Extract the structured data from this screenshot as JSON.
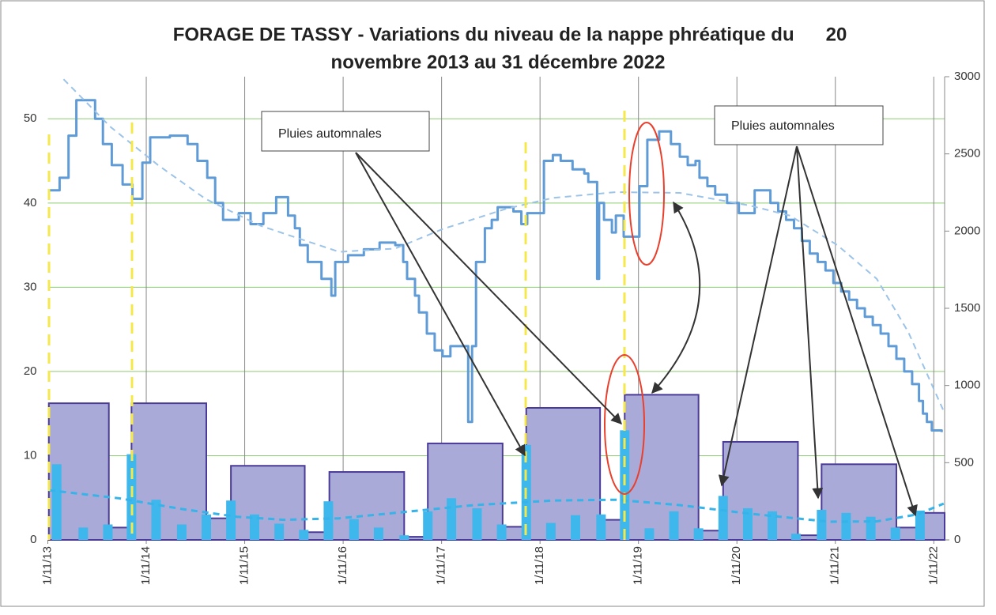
{
  "chart_data": {
    "type": "combo",
    "title": [
      "FORAGE DE TASSY - Variations du niveau de la nappe phréatique du      20",
      "novembre 2013 au 31 décembre 2022"
    ],
    "xlim": [
      2013.83,
      2022.94
    ],
    "xticks": [
      {
        "value": 2013.83,
        "label": "1/11/13"
      },
      {
        "value": 2014.83,
        "label": "1/11/14"
      },
      {
        "value": 2015.83,
        "label": "1/11/15"
      },
      {
        "value": 2016.83,
        "label": "1/11/16"
      },
      {
        "value": 2017.83,
        "label": "1/11/17"
      },
      {
        "value": 2018.83,
        "label": "1/11/18"
      },
      {
        "value": 2019.83,
        "label": "1/11/19"
      },
      {
        "value": 2020.83,
        "label": "1/11/20"
      },
      {
        "value": 2021.83,
        "label": "1/11/21"
      },
      {
        "value": 2022.83,
        "label": "1/11/22"
      }
    ],
    "ylim": [
      0,
      55
    ],
    "yticks": [
      0,
      10,
      20,
      30,
      40,
      50
    ],
    "y2lim": [
      0,
      3000
    ],
    "y2ticks": [
      0,
      500,
      1000,
      1500,
      2000,
      2500,
      3000
    ],
    "grid": true,
    "annotations": [
      "Pluies automnales",
      "Pluies automnales"
    ],
    "series": [
      {
        "type": "histogram",
        "axis": "y2",
        "color": "#aaaad8",
        "edge_color": "#4a3b98",
        "bins": [
          2013.84,
          2014.45,
          2014.68,
          2015.44,
          2015.69,
          2016.44,
          2016.69,
          2017.45,
          2017.69,
          2018.45,
          2018.69,
          2019.44,
          2019.69,
          2020.44,
          2020.69,
          2021.45,
          2021.69,
          2022.45,
          2022.66,
          2022.94
        ],
        "values": [
          885,
          80,
          885,
          140,
          480,
          50,
          440,
          20,
          625,
          85,
          855,
          130,
          940,
          60,
          635,
          30,
          490,
          80,
          175
        ]
      },
      {
        "type": "bar",
        "axis": "y2",
        "color": "#3db7ec",
        "x": [
          2013.92,
          2014.19,
          2014.44,
          2014.68,
          2014.93,
          2015.19,
          2015.44,
          2015.69,
          2015.93,
          2016.18,
          2016.43,
          2016.68,
          2016.94,
          2017.19,
          2017.45,
          2017.69,
          2017.93,
          2018.19,
          2018.44,
          2018.69,
          2018.94,
          2019.19,
          2019.45,
          2019.69,
          2019.94,
          2020.19,
          2020.44,
          2020.69,
          2020.94,
          2021.19,
          2021.43,
          2021.69,
          2021.94,
          2022.19,
          2022.44,
          2022.69
        ],
        "values": [
          490,
          80,
          100,
          555,
          260,
          100,
          165,
          255,
          165,
          105,
          65,
          250,
          135,
          80,
          30,
          185,
          270,
          205,
          100,
          615,
          110,
          160,
          165,
          710,
          75,
          185,
          75,
          285,
          205,
          185,
          40,
          195,
          175,
          150,
          80,
          190
        ]
      },
      {
        "type": "line",
        "axis": "y2",
        "color": "#36b3e8",
        "dashed": true,
        "width": 3,
        "x": [
          2013.84,
          2014.55,
          2015.19,
          2015.75,
          2016.23,
          2016.79,
          2017.36,
          2018.16,
          2018.96,
          2019.6,
          2020.25,
          2020.96,
          2021.77,
          2022.25,
          2022.66,
          2022.93
        ],
        "values": [
          322,
          270,
          200,
          150,
          130,
          140,
          175,
          225,
          255,
          260,
          225,
          170,
          118,
          120,
          165,
          235
        ]
      },
      {
        "type": "step",
        "color": "#5f9bd6",
        "width": 3,
        "x": [
          2013.84,
          2013.95,
          2014.04,
          2014.12,
          2014.31,
          2014.39,
          2014.48,
          2014.59,
          2014.69,
          2014.79,
          2014.87,
          2015.07,
          2015.25,
          2015.35,
          2015.45,
          2015.53,
          2015.61,
          2015.77,
          2015.89,
          2016.02,
          2016.15,
          2016.27,
          2016.34,
          2016.39,
          2016.47,
          2016.61,
          2016.71,
          2016.75,
          2016.88,
          2017.04,
          2017.2,
          2017.36,
          2017.44,
          2017.48,
          2017.56,
          2017.6,
          2017.68,
          2017.76,
          2017.84,
          2017.92,
          2018.1,
          2018.14,
          2018.18,
          2018.27,
          2018.34,
          2018.4,
          2018.56,
          2018.64,
          2018.7,
          2018.87,
          2018.96,
          2019.04,
          2019.16,
          2019.28,
          2019.32,
          2019.41,
          2019.43,
          2019.48,
          2019.56,
          2019.6,
          2019.68,
          2019.84,
          2019.92,
          2020.04,
          2020.16,
          2020.25,
          2020.33,
          2020.41,
          2020.45,
          2020.53,
          2020.61,
          2020.73,
          2020.85,
          2021.01,
          2021.17,
          2021.25,
          2021.33,
          2021.41,
          2021.49,
          2021.57,
          2021.65,
          2021.73,
          2021.81,
          2021.89,
          2021.97,
          2022.05,
          2022.13,
          2022.21,
          2022.29,
          2022.37,
          2022.45,
          2022.53,
          2022.61,
          2022.68,
          2022.72,
          2022.76,
          2022.81,
          2022.91
        ],
        "values": [
          41.5,
          43,
          48,
          52.2,
          50,
          47,
          44.5,
          42.2,
          40.5,
          44.8,
          47.8,
          48,
          47,
          45,
          43,
          40,
          38,
          38.8,
          37.5,
          38.8,
          40.7,
          38.5,
          37,
          35,
          33,
          31,
          29,
          33,
          33.8,
          34.5,
          35.3,
          35,
          33,
          31,
          29,
          27,
          24.5,
          22.5,
          21.8,
          23,
          14,
          23,
          33,
          37,
          38,
          39.5,
          39,
          37.5,
          38.8,
          45,
          45.7,
          45,
          44,
          43.5,
          42.5,
          31,
          40,
          38,
          36.5,
          38.5,
          36,
          42,
          47.5,
          48.5,
          47,
          45.5,
          44.5,
          45,
          43,
          42,
          41,
          40,
          38.8,
          41.5,
          40,
          39,
          38,
          37,
          35.5,
          34,
          33,
          32,
          30.5,
          29.5,
          28.5,
          27.5,
          26.5,
          25.5,
          24.5,
          23,
          21.5,
          20,
          18.5,
          16.5,
          15,
          14,
          13,
          12.8
        ]
      },
      {
        "type": "line",
        "color": "#9cc3e8",
        "dashed": true,
        "width": 2,
        "x": [
          2013.99,
          2014.47,
          2014.95,
          2015.43,
          2015.99,
          2016.79,
          2017.36,
          2017.84,
          2018.48,
          2018.96,
          2019.6,
          2020.25,
          2020.96,
          2021.37,
          2021.85,
          2022.25,
          2022.57,
          2022.93
        ],
        "values": [
          54.7,
          49,
          44.5,
          40.5,
          37.3,
          34.2,
          34.6,
          36.9,
          39.3,
          40.6,
          41.3,
          41.2,
          39.7,
          38.5,
          35,
          31,
          24.7,
          15.3
        ]
      }
    ]
  }
}
